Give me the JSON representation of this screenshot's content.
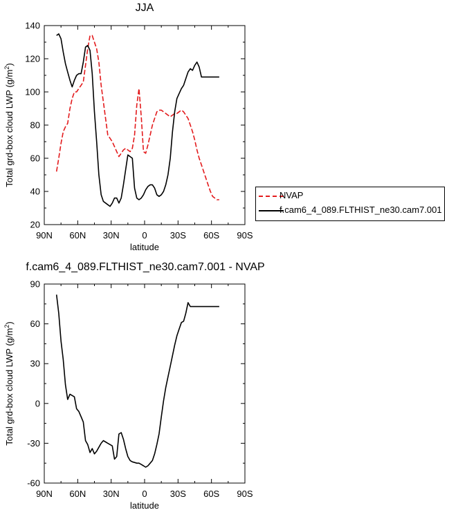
{
  "chart_data": [
    {
      "type": "line",
      "title": "JJA",
      "xlabel": "latitude",
      "ylabel_main": "Total grd-box cloud LWP",
      "ylabel_unit_pre": " (g/m",
      "ylabel_unit_sup": "2",
      "ylabel_unit_post": ")",
      "xlim": [
        90,
        -90
      ],
      "ylim": [
        20,
        140
      ],
      "xticks": [
        90,
        60,
        30,
        0,
        -30,
        -60,
        -90
      ],
      "xtick_labels": [
        "90N",
        "60N",
        "30N",
        "0",
        "30S",
        "60S",
        "90S"
      ],
      "yticks": [
        20,
        40,
        60,
        80,
        100,
        120,
        140
      ],
      "ytick_labels": [
        "20",
        "40",
        "60",
        "80",
        "100",
        "120",
        "140"
      ],
      "legend_placement": "right-outside",
      "series": [
        {
          "name": "NVAP",
          "color": "#e31a1c",
          "dash": "dashed",
          "x": [
            79,
            77,
            75,
            73,
            71,
            69,
            67,
            65,
            63,
            61,
            59,
            57,
            55,
            53,
            51,
            49,
            47,
            45,
            43,
            41,
            39,
            37,
            35,
            33,
            31,
            29,
            27,
            25,
            23,
            21,
            19,
            17,
            15,
            13,
            11,
            9,
            7,
            5,
            3,
            1,
            -1,
            -3,
            -5,
            -7,
            -9,
            -11,
            -13,
            -15,
            -17,
            -19,
            -21,
            -23,
            -25,
            -27,
            -29,
            -31,
            -33,
            -35,
            -37,
            -39,
            -41,
            -43,
            -45,
            -47,
            -49,
            -51,
            -53,
            -55,
            -57,
            -59,
            -61,
            -63,
            -65,
            -67
          ],
          "values": [
            52,
            60,
            69,
            76,
            79,
            81,
            90,
            96,
            100,
            100,
            102,
            104,
            106,
            116,
            126,
            134,
            134,
            130,
            126,
            118,
            104,
            94,
            84,
            74,
            72,
            70,
            67,
            64,
            61,
            63,
            65,
            66,
            65,
            64,
            66,
            74,
            92,
            102,
            85,
            64,
            63,
            68,
            74,
            80,
            84,
            88,
            89,
            89,
            88,
            87,
            86,
            85,
            86,
            87,
            87,
            88,
            89,
            88,
            86,
            84,
            80,
            76,
            71,
            65,
            60,
            56,
            52,
            48,
            44,
            40,
            37,
            36,
            35,
            35
          ]
        },
        {
          "name": "f.cam6_4_089.FLTHIST_ne30.cam7.001",
          "color": "#000000",
          "dash": "solid",
          "x": [
            79,
            77,
            75,
            73,
            71,
            69,
            67,
            65,
            63,
            61,
            59,
            57,
            55,
            53,
            51,
            49,
            47,
            45,
            43,
            41,
            39,
            37,
            35,
            33,
            31,
            29,
            27,
            25,
            23,
            21,
            19,
            17,
            15,
            13,
            11,
            9,
            7,
            5,
            3,
            1,
            -1,
            -3,
            -5,
            -7,
            -9,
            -11,
            -13,
            -15,
            -17,
            -19,
            -21,
            -23,
            -25,
            -27,
            -29,
            -31,
            -33,
            -35,
            -37,
            -39,
            -41,
            -43,
            -45,
            -47,
            -49,
            -51,
            -53,
            -55,
            -57,
            -59,
            -61,
            -63,
            -65,
            -67
          ],
          "values": [
            134,
            135,
            132,
            124,
            117,
            112,
            107,
            103,
            107,
            110,
            111,
            111,
            118,
            127,
            128,
            125,
            111,
            88,
            70,
            50,
            38,
            34,
            33,
            32,
            31,
            33,
            36,
            36,
            33,
            36,
            44,
            53,
            62,
            61,
            60,
            42,
            36,
            35,
            36,
            38,
            41,
            43,
            44,
            44,
            42,
            38,
            37,
            38,
            40,
            44,
            50,
            60,
            76,
            88,
            96,
            99,
            102,
            104,
            108,
            112,
            114,
            113,
            116,
            118,
            115,
            109,
            109,
            109,
            109,
            109,
            109,
            109,
            109,
            109
          ]
        }
      ]
    },
    {
      "type": "line",
      "title": "f.cam6_4_089.FLTHIST_ne30.cam7.001 - NVAP",
      "xlabel": "latitude",
      "ylabel_main": "Total grd-box cloud LWP",
      "ylabel_unit_pre": " (g/m",
      "ylabel_unit_sup": "2",
      "ylabel_unit_post": ")",
      "xlim": [
        90,
        -90
      ],
      "ylim": [
        -60,
        90
      ],
      "xticks": [
        90,
        60,
        30,
        0,
        -30,
        -60,
        -90
      ],
      "xtick_labels": [
        "90N",
        "60N",
        "30N",
        "0",
        "30S",
        "60S",
        "90S"
      ],
      "yticks": [
        -60,
        -30,
        0,
        30,
        60,
        90
      ],
      "ytick_labels": [
        "-60",
        "-30",
        "0",
        "30",
        "60",
        "90"
      ],
      "series": [
        {
          "name": "",
          "color": "#000000",
          "dash": "solid",
          "x": [
            79,
            77,
            75,
            73,
            71,
            69,
            67,
            65,
            63,
            61,
            59,
            57,
            55,
            53,
            51,
            49,
            47,
            45,
            43,
            41,
            39,
            37,
            35,
            33,
            31,
            29,
            27,
            25,
            23,
            21,
            19,
            17,
            15,
            13,
            11,
            9,
            7,
            5,
            3,
            1,
            -1,
            -3,
            -5,
            -7,
            -9,
            -11,
            -13,
            -15,
            -17,
            -19,
            -21,
            -23,
            -25,
            -27,
            -29,
            -31,
            -33,
            -35,
            -37,
            -39,
            -41,
            -43,
            -45,
            -47,
            -49,
            -51,
            -53,
            -55,
            -57,
            -59,
            -61,
            -63,
            -65,
            -67
          ],
          "values": [
            82,
            68,
            47,
            33,
            14,
            3,
            7,
            6,
            5,
            -4,
            -6,
            -10,
            -14,
            -28,
            -31,
            -37,
            -34,
            -38,
            -36,
            -33,
            -30,
            -28,
            -29,
            -30,
            -31,
            -32,
            -42,
            -40,
            -23,
            -22,
            -27,
            -34,
            -40,
            -43,
            -44,
            -44.5,
            -45,
            -45,
            -46,
            -47,
            -48,
            -47,
            -45,
            -43,
            -38,
            -31,
            -23,
            -10,
            2,
            12,
            20,
            28,
            36,
            44,
            51,
            56,
            61,
            62,
            68,
            76,
            73,
            73,
            73,
            73,
            73,
            73,
            73,
            73,
            73,
            73,
            73,
            73,
            73,
            73
          ]
        }
      ]
    }
  ]
}
